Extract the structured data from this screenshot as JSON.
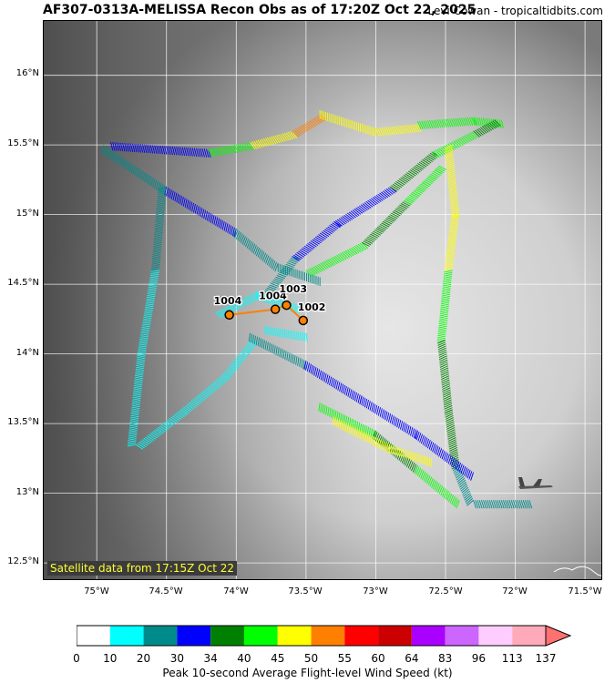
{
  "header": {
    "title": "AF307-0313A-MELISSA Recon Obs as of 17:20Z Oct 22, 2025",
    "credit": "Levi Cowan - tropicaltidbits.com"
  },
  "map": {
    "satellite_label": "Satellite data from 17:15Z Oct 22",
    "lat_ticks": [
      "16°N",
      "15.5°N",
      "15°N",
      "14.5°N",
      "14°N",
      "13.5°N",
      "13°N",
      "12.5°N"
    ],
    "lon_ticks": [
      "75°W",
      "74.5°W",
      "74°W",
      "73.5°W",
      "73°W",
      "72.5°W",
      "72°W",
      "71.5°W"
    ],
    "lat_range": [
      12.37,
      16.39
    ],
    "lon_range": [
      -75.38,
      -71.37
    ],
    "pressure_obs": [
      {
        "label": "1004",
        "lon": -74.05,
        "lat": 14.28
      },
      {
        "label": "1004",
        "lon": -73.72,
        "lat": 14.32
      },
      {
        "label": "1003",
        "lon": -73.64,
        "lat": 14.35
      },
      {
        "label": "1002",
        "lon": -73.52,
        "lat": 14.24
      }
    ],
    "aircraft_icon": "c130-plane-icon",
    "aircraft_position": {
      "lon": -71.86,
      "lat": 13.05
    }
  },
  "colorbar": {
    "title": "Peak 10-second Average Flight-level Wind Speed (kt)",
    "ticks": [
      "0",
      "10",
      "20",
      "30",
      "34",
      "40",
      "45",
      "50",
      "55",
      "60",
      "64",
      "83",
      "96",
      "113",
      "137"
    ],
    "colors": [
      "#ffffff",
      "#00ffff",
      "#008b8b",
      "#0000ff",
      "#008000",
      "#00ff00",
      "#ffff00",
      "#ff8000",
      "#ff0000",
      "#cc0000",
      "#aa00ff",
      "#cc66ff",
      "#ffccff",
      "#ffaabb"
    ],
    "extend_color": "#ff7070"
  }
}
